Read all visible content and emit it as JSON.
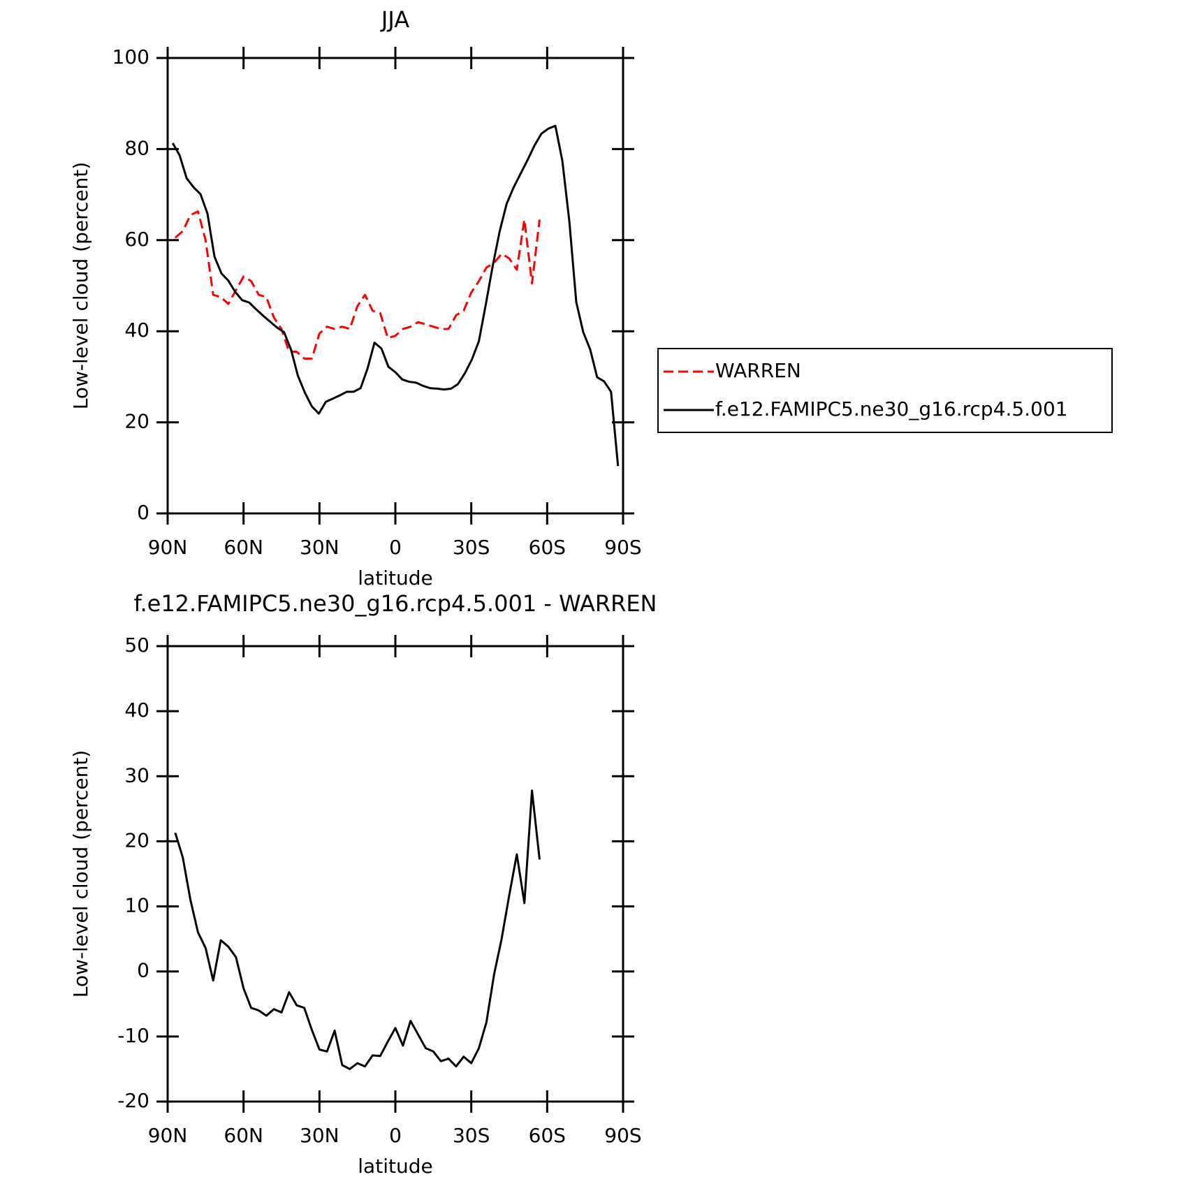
{
  "chart_data": [
    {
      "type": "line",
      "title": "JJA",
      "x_label": "latitude",
      "y_label": "Low-level cloud (percent)",
      "xlim": [
        90,
        -90
      ],
      "xticks": [
        {
          "value": 90,
          "label": "90N"
        },
        {
          "value": 60,
          "label": "60N"
        },
        {
          "value": 30,
          "label": "30N"
        },
        0,
        {
          "value": -30,
          "label": "30S"
        },
        {
          "value": -60,
          "label": "60S"
        },
        {
          "value": -90,
          "label": "90S"
        }
      ],
      "ylim": [
        0,
        100
      ],
      "yticks": [
        0,
        20,
        40,
        60,
        80,
        100
      ],
      "legend": "right",
      "series": [
        {
          "name": "WARREN",
          "color": "#ff0000",
          "style": "dashed",
          "x": [
            87,
            84,
            81,
            78,
            75,
            72,
            69,
            66,
            63,
            60,
            57,
            54,
            51,
            48,
            45,
            42,
            39,
            36,
            33,
            30,
            27,
            24,
            21,
            18,
            15,
            12,
            9,
            6,
            3,
            0,
            -3,
            -6,
            -9,
            -12,
            -15,
            -18,
            -21,
            -24,
            -27,
            -30,
            -33,
            -36,
            -39,
            -42,
            -45,
            -48,
            -51,
            -54,
            -57
          ],
          "values": [
            60.5,
            62,
            65.5,
            66.3,
            60,
            48,
            47.5,
            46,
            49,
            52,
            51,
            48,
            47.5,
            43,
            40.5,
            35.5,
            35.5,
            34,
            34,
            39.5,
            41,
            40.5,
            41,
            40.5,
            45.5,
            48,
            44.5,
            44,
            38.5,
            39,
            40.5,
            41,
            42,
            41.5,
            41,
            40.5,
            40.5,
            43.5,
            44.5,
            48.5,
            51,
            54,
            55,
            57,
            56,
            53.5,
            64.5,
            50.5,
            64.5
          ]
        },
        {
          "name": "f.e12.FAMIPC5.ne30_g16.rcp4.5.001",
          "color": "#000000",
          "style": "solid",
          "x": [
            88,
            85.25,
            82.5,
            79.75,
            77,
            74.25,
            71.5,
            68.75,
            66,
            63.25,
            60.5,
            57.75,
            55,
            52.25,
            49.5,
            46.75,
            44,
            41.25,
            38.5,
            35.75,
            33,
            30.25,
            27.5,
            24.75,
            22,
            19.25,
            16.5,
            13.75,
            11,
            8.25,
            5.5,
            2.75,
            0,
            -2.75,
            -5.5,
            -8.25,
            -11,
            -13.75,
            -16.5,
            -19.25,
            -22,
            -24.75,
            -27.5,
            -30.25,
            -33,
            -35.75,
            -38.5,
            -41.25,
            -44,
            -46.75,
            -49.5,
            -52.25,
            -55,
            -57.75,
            -60.5,
            -63.25,
            -66,
            -68.75,
            -71.5,
            -74.25,
            -77,
            -79.75,
            -82.5,
            -85.25,
            -88
          ],
          "values": [
            81.3,
            78.6,
            73.6,
            71.6,
            70.1,
            65.8,
            56.4,
            52.7,
            51.1,
            48.6,
            46.8,
            46.3,
            44.8,
            43.4,
            42.1,
            40.8,
            39.8,
            36.0,
            30.2,
            26.5,
            23.5,
            21.9,
            24.5,
            25.2,
            25.9,
            26.7,
            26.7,
            27.5,
            31.8,
            37.5,
            36.2,
            32.2,
            31.0,
            29.4,
            28.9,
            28.7,
            28.0,
            27.5,
            27.4,
            27.2,
            27.4,
            28.4,
            30.8,
            33.8,
            37.8,
            45.9,
            54.4,
            62.0,
            68.0,
            71.6,
            74.6,
            77.6,
            80.8,
            83.4,
            84.5,
            85.1,
            77.4,
            64.2,
            46.4,
            39.8,
            36.0,
            29.9,
            29.0,
            26.7,
            10.4
          ]
        }
      ]
    },
    {
      "type": "line",
      "title": "f.e12.FAMIPC5.ne30_g16.rcp4.5.001 - WARREN",
      "x_label": "latitude",
      "y_label": "Low-level cloud (percent)",
      "xlim": [
        90,
        -90
      ],
      "xticks": [
        {
          "value": 90,
          "label": "90N"
        },
        {
          "value": 60,
          "label": "60N"
        },
        {
          "value": 30,
          "label": "30N"
        },
        0,
        {
          "value": -30,
          "label": "30S"
        },
        {
          "value": -60,
          "label": "60S"
        },
        {
          "value": -90,
          "label": "90S"
        }
      ],
      "ylim": [
        -20,
        50
      ],
      "yticks": [
        -20,
        -10,
        0,
        10,
        20,
        30,
        40,
        50
      ],
      "series": [
        {
          "color": "#000000",
          "style": "solid",
          "x": [
            87,
            84,
            81,
            78,
            75,
            72,
            69,
            66,
            63,
            60,
            57,
            54,
            51,
            48,
            45,
            42,
            39,
            36,
            33,
            30,
            27,
            24,
            21,
            18,
            15,
            12,
            9,
            6,
            3,
            0,
            -3,
            -6,
            -9,
            -12,
            -15,
            -18,
            -21,
            -24,
            -27,
            -30,
            -33,
            -36,
            -39,
            -42,
            -45,
            -48,
            -51,
            -54,
            -57
          ],
          "values": [
            21.3,
            17.5,
            11,
            6,
            3.6,
            -1.4,
            4.8,
            3.8,
            2.2,
            -2.6,
            -5.6,
            -6,
            -6.8,
            -5.8,
            -6.3,
            -3.2,
            -5.2,
            -5.6,
            -9,
            -12,
            -12.3,
            -9.1,
            -14.4,
            -15,
            -14.1,
            -14.6,
            -12.9,
            -13,
            -10.8,
            -8.7,
            -11.4,
            -7.6,
            -9.7,
            -11.8,
            -12.3,
            -13.8,
            -13.4,
            -14.6,
            -13.1,
            -14.1,
            -11.8,
            -7.8,
            -0.5,
            5,
            11.7,
            18,
            10.5,
            27.8,
            17.2
          ]
        }
      ]
    }
  ]
}
